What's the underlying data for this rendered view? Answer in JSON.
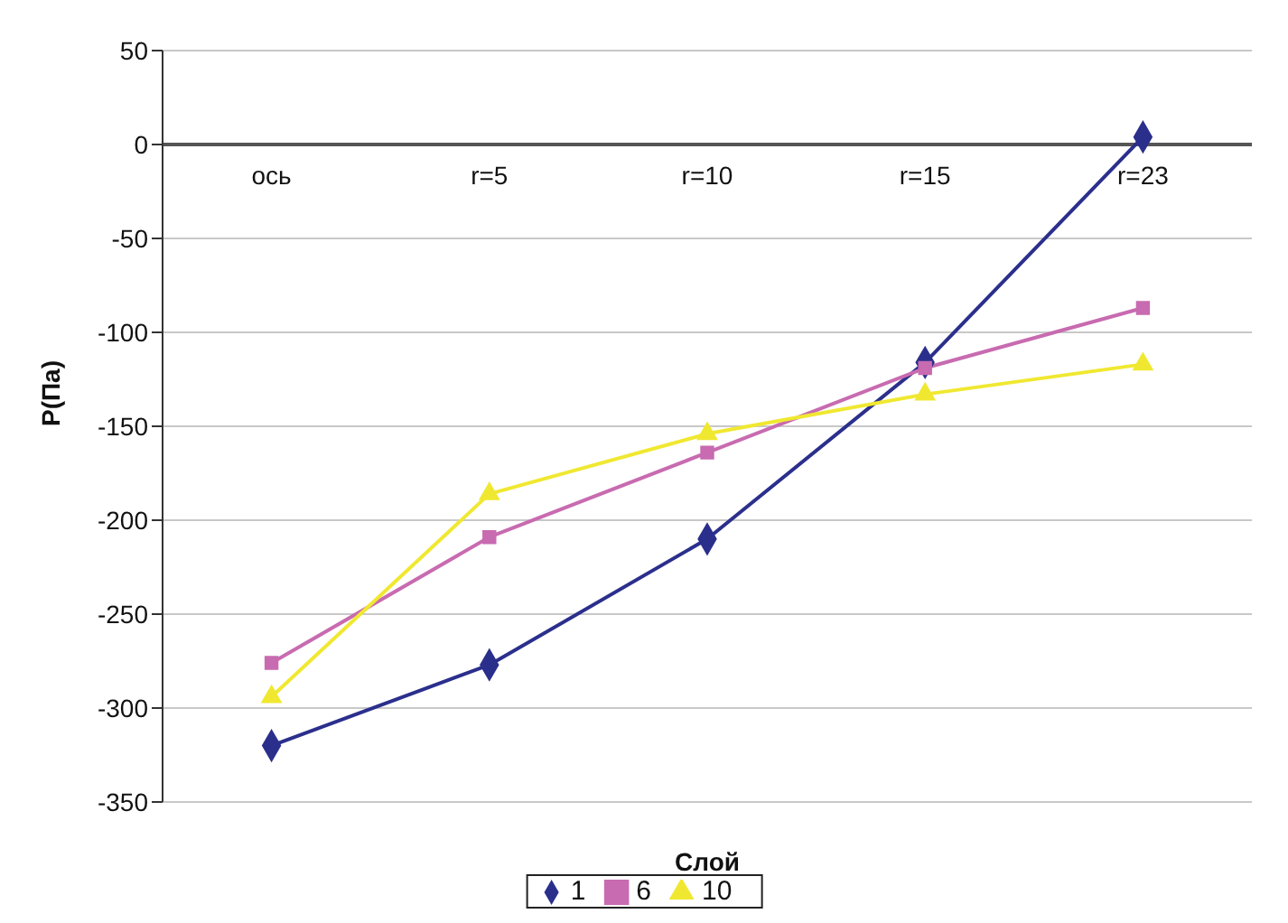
{
  "chart_data": {
    "type": "line",
    "xlabel": "Слой",
    "ylabel": "P(Па)",
    "categories": [
      "ось",
      "r=5",
      "r=10",
      "r=15",
      "r=23"
    ],
    "series": [
      {
        "name": "1",
        "color": "#2b2f8c",
        "marker": "diamond",
        "values": [
          -320,
          -277,
          -210,
          -116,
          4
        ]
      },
      {
        "name": "6",
        "color": "#c86bb0",
        "marker": "square",
        "values": [
          -276,
          -209,
          -164,
          -119,
          -87
        ]
      },
      {
        "name": "10",
        "color": "#f0e830",
        "marker": "triangle",
        "values": [
          -294,
          -186,
          -154,
          -133,
          -117
        ]
      }
    ],
    "ylim": [
      -350,
      50
    ],
    "yticks": [
      -350,
      -300,
      -250,
      -200,
      -150,
      -100,
      -50,
      0,
      50
    ],
    "grid": true,
    "legend": "bottom"
  }
}
